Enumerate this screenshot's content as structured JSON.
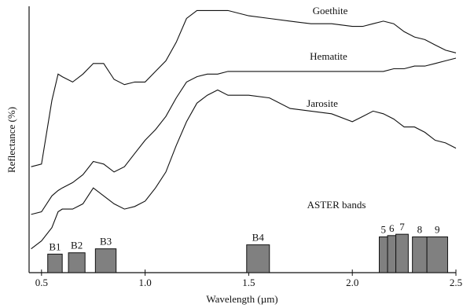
{
  "chart_data": {
    "type": "line",
    "x_label": "Wavelength (µm)",
    "y_label": "Reflectance (%)",
    "x": [
      0.45,
      0.5,
      0.55,
      0.58,
      0.6,
      0.65,
      0.7,
      0.75,
      0.8,
      0.85,
      0.9,
      0.95,
      1.0,
      1.05,
      1.1,
      1.15,
      1.2,
      1.25,
      1.3,
      1.35,
      1.4,
      1.5,
      1.6,
      1.7,
      1.8,
      1.9,
      2.0,
      2.05,
      2.1,
      2.15,
      2.2,
      2.25,
      2.3,
      2.35,
      2.4,
      2.45,
      2.5
    ],
    "series": [
      {
        "name": "Goethite",
        "color": "#111111",
        "values": [
          40,
          41,
          65,
          75,
          74,
          72,
          75,
          79,
          79,
          73,
          71,
          72,
          72,
          76,
          80,
          87,
          96,
          99,
          99,
          99,
          99,
          97,
          96,
          95,
          94,
          94,
          93,
          93,
          94,
          95,
          94,
          91,
          89,
          88,
          86,
          84,
          83
        ]
      },
      {
        "name": "Hematite",
        "color": "#111111",
        "values": [
          22,
          23,
          29,
          31,
          32,
          34,
          37,
          42,
          41,
          38,
          40,
          45,
          50,
          54,
          59,
          66,
          72,
          74,
          75,
          75,
          76,
          76,
          76,
          76,
          76,
          76,
          76,
          76,
          76,
          76,
          77,
          77,
          78,
          78,
          79,
          80,
          81
        ]
      },
      {
        "name": "Jarosite",
        "color": "#111111",
        "values": [
          9,
          12,
          17,
          23,
          24,
          24,
          26,
          32,
          29,
          26,
          24,
          25,
          27,
          32,
          38,
          48,
          57,
          64,
          67,
          69,
          67,
          67,
          66,
          62,
          61,
          60,
          57,
          59,
          61,
          60,
          58,
          55,
          55,
          53,
          50,
          49,
          47
        ]
      }
    ],
    "bands": {
      "label": "ASTER bands",
      "color": "#808080",
      "names": [
        "B1",
        "B2",
        "B3",
        "B4",
        "5",
        "6",
        "7",
        "8",
        "9"
      ],
      "x_start": [
        0.53,
        0.63,
        0.76,
        1.49,
        2.13,
        2.17,
        2.21,
        2.29,
        2.36
      ],
      "x_end": [
        0.6,
        0.71,
        0.86,
        1.6,
        2.17,
        2.21,
        2.27,
        2.36,
        2.46
      ],
      "values": [
        7,
        7.5,
        9,
        10.5,
        13.5,
        14,
        14.5,
        13.5,
        13.5
      ]
    },
    "xlim": [
      0.44,
      2.5
    ],
    "ylim": [
      0,
      100
    ],
    "xticks": [
      0.5,
      {
        "value": 1,
        "label": "1.0"
      },
      1.5,
      {
        "value": 2,
        "label": "2.0"
      },
      2.5
    ]
  }
}
